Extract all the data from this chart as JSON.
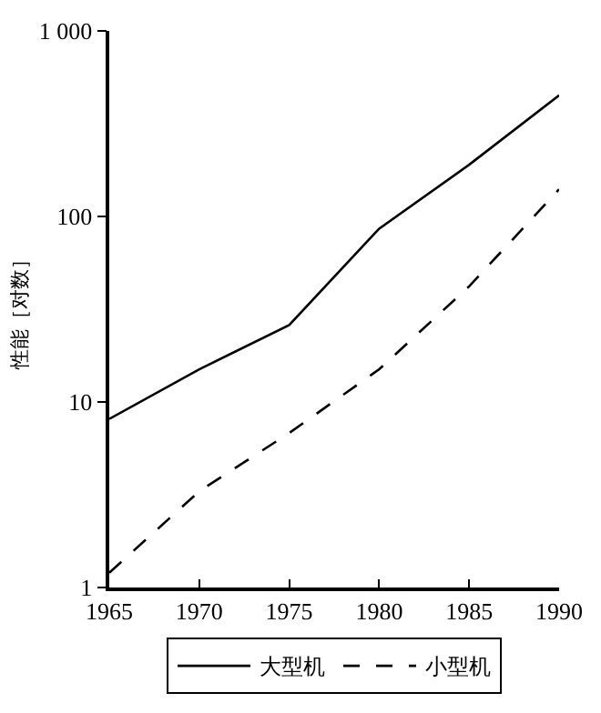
{
  "chart_data": {
    "type": "line",
    "ylabel": "性能［对数］",
    "x": [
      1965,
      1970,
      1975,
      1980,
      1985,
      1990
    ],
    "series": [
      {
        "name": "大型机",
        "color": "#000000",
        "values": [
          8.1,
          15,
          26,
          86,
          190,
          450
        ],
        "line_style": "solid"
      },
      {
        "name": "小型机",
        "color": "#000000",
        "values": [
          1.2,
          3.3,
          6.8,
          15,
          42,
          140
        ],
        "line_style": "dashed"
      }
    ],
    "log": true,
    "xlim": [
      1965,
      1990
    ],
    "ylim": [
      1,
      1000
    ],
    "xticks": [
      1965,
      1970,
      1975,
      1980,
      1985,
      1990
    ],
    "yticks": [
      1,
      10,
      100,
      {
        "value": 1000,
        "label": "1 000"
      }
    ],
    "legend": "bottom",
    "marker": "none"
  }
}
